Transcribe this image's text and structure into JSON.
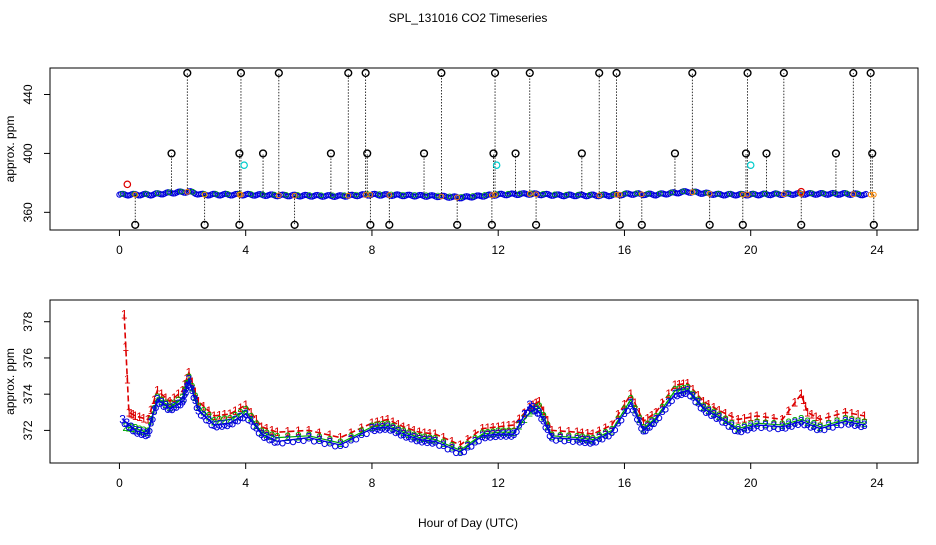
{
  "title": "SPL_131016  CO2 Timeseries",
  "xlabel": "Hour of Day (UTC)",
  "chart_data": [
    {
      "type": "scatter",
      "title": "",
      "ylabel": "approx. ppm",
      "xlim": [
        -2.2,
        25.3
      ],
      "ylim": [
        348,
        458
      ],
      "x_ticks": [
        "0",
        "4",
        "8",
        "12",
        "16",
        "20",
        "24"
      ],
      "y_ticks": [
        "360",
        "400",
        "440"
      ],
      "baseline": [
        [
          0,
          372
        ],
        [
          1,
          372
        ],
        [
          1.5,
          373
        ],
        [
          2.2,
          374
        ],
        [
          2.6,
          372
        ],
        [
          4,
          372
        ],
        [
          5,
          371.5
        ],
        [
          7,
          371
        ],
        [
          8,
          372
        ],
        [
          10,
          371
        ],
        [
          10.8,
          370
        ],
        [
          12,
          372
        ],
        [
          13,
          372.5
        ],
        [
          14,
          371.5
        ],
        [
          15.5,
          371.5
        ],
        [
          16.2,
          372.5
        ],
        [
          17,
          372
        ],
        [
          18,
          374
        ],
        [
          19,
          372
        ],
        [
          20,
          372
        ],
        [
          21.6,
          372.5
        ],
        [
          23,
          372.5
        ],
        [
          23.7,
          372
        ]
      ],
      "high_spikes": [
        2.15,
        3.85,
        5.05,
        7.25,
        7.8,
        10.2,
        11.9,
        13.0,
        15.2,
        15.75,
        18.15,
        19.9,
        21.05,
        23.25,
        23.8
      ],
      "mid_spikes": [
        1.65,
        3.8,
        4.55,
        6.7,
        7.85,
        9.65,
        11.85,
        12.55,
        14.65,
        17.6,
        19.85,
        20.5,
        22.7,
        23.85
      ],
      "low_spikes": [
        0.5,
        2.7,
        3.8,
        5.55,
        7.95,
        8.55,
        10.7,
        11.8,
        13.2,
        15.85,
        16.55,
        18.7,
        19.75,
        21.6,
        23.9
      ],
      "cyan_points": [
        [
          3.95,
          392
        ],
        [
          11.95,
          392
        ],
        [
          20.0,
          392
        ]
      ],
      "red_points": [
        [
          0.25,
          379
        ],
        [
          21.6,
          374
        ]
      ],
      "symbols": {
        "spike": "o",
        "cyan": "o",
        "red": "o"
      }
    },
    {
      "type": "line",
      "title": "",
      "ylabel": "approx. ppm",
      "xlim": [
        -2.2,
        25.3
      ],
      "ylim": [
        370.2,
        379.2
      ],
      "x_ticks": [
        "0",
        "4",
        "8",
        "12",
        "16",
        "20",
        "24"
      ],
      "y_ticks": [
        "372",
        "374",
        "376",
        "378"
      ],
      "series": [
        {
          "name": "1",
          "color": "#dd0000",
          "label": "1",
          "points": [
            [
              0.15,
              378.4
            ],
            [
              0.3,
              373.0
            ],
            [
              0.5,
              372.8
            ],
            [
              0.9,
              372.6
            ],
            [
              1.2,
              374.2
            ],
            [
              1.6,
              373.6
            ],
            [
              2.0,
              374.2
            ],
            [
              2.2,
              375.2
            ],
            [
              2.5,
              373.6
            ],
            [
              3.0,
              372.8
            ],
            [
              3.5,
              372.9
            ],
            [
              4.0,
              373.4
            ],
            [
              4.5,
              372.2
            ],
            [
              5.0,
              371.9
            ],
            [
              6.0,
              372.0
            ],
            [
              7.0,
              371.6
            ],
            [
              8.0,
              372.4
            ],
            [
              8.5,
              372.6
            ],
            [
              9.0,
              372.2
            ],
            [
              9.5,
              371.9
            ],
            [
              10.0,
              371.8
            ],
            [
              10.8,
              371.2
            ],
            [
              11.5,
              372.1
            ],
            [
              12.0,
              372.2
            ],
            [
              12.5,
              372.3
            ],
            [
              13.0,
              373.3
            ],
            [
              13.3,
              373.6
            ],
            [
              13.7,
              372.0
            ],
            [
              14.5,
              371.9
            ],
            [
              15.0,
              371.8
            ],
            [
              15.6,
              372.3
            ],
            [
              16.2,
              374.0
            ],
            [
              16.6,
              372.5
            ],
            [
              17.0,
              373.0
            ],
            [
              17.6,
              374.5
            ],
            [
              18.0,
              374.6
            ],
            [
              18.5,
              373.6
            ],
            [
              19.0,
              373.1
            ],
            [
              19.6,
              372.6
            ],
            [
              20.2,
              372.8
            ],
            [
              21.0,
              372.6
            ],
            [
              21.6,
              374.0
            ],
            [
              21.8,
              373.0
            ],
            [
              22.2,
              372.6
            ],
            [
              23.0,
              373.0
            ],
            [
              23.6,
              372.8
            ]
          ]
        },
        {
          "name": "2",
          "color": "#00aa00",
          "label": "2",
          "points": [
            [
              0.2,
              372.2
            ],
            [
              0.5,
              372.1
            ],
            [
              0.9,
              371.9
            ],
            [
              1.2,
              373.8
            ],
            [
              1.6,
              373.3
            ],
            [
              2.0,
              373.8
            ],
            [
              2.2,
              374.9
            ],
            [
              2.5,
              373.3
            ],
            [
              3.0,
              372.5
            ],
            [
              3.5,
              372.6
            ],
            [
              4.0,
              373.1
            ],
            [
              4.5,
              371.9
            ],
            [
              5.0,
              371.6
            ],
            [
              6.0,
              371.7
            ],
            [
              7.0,
              371.3
            ],
            [
              8.0,
              372.2
            ],
            [
              8.5,
              372.3
            ],
            [
              9.0,
              371.9
            ],
            [
              9.5,
              371.6
            ],
            [
              10.0,
              371.5
            ],
            [
              10.8,
              370.9
            ],
            [
              11.5,
              371.8
            ],
            [
              12.0,
              371.9
            ],
            [
              12.5,
              371.9
            ],
            [
              13.0,
              373.0
            ],
            [
              13.3,
              373.3
            ],
            [
              13.7,
              371.7
            ],
            [
              14.5,
              371.6
            ],
            [
              15.0,
              371.5
            ],
            [
              15.6,
              372.0
            ],
            [
              16.2,
              373.7
            ],
            [
              16.6,
              372.1
            ],
            [
              17.0,
              372.7
            ],
            [
              17.6,
              374.2
            ],
            [
              18.0,
              374.3
            ],
            [
              18.5,
              373.3
            ],
            [
              19.0,
              372.8
            ],
            [
              19.6,
              372.1
            ],
            [
              20.2,
              372.4
            ],
            [
              21.0,
              372.3
            ],
            [
              21.6,
              372.6
            ],
            [
              22.2,
              372.2
            ],
            [
              23.0,
              372.6
            ],
            [
              23.6,
              372.4
            ]
          ]
        },
        {
          "name": "3",
          "color": "#0000dd",
          "label": "3",
          "points": [
            [
              0.1,
              372.6
            ],
            [
              0.5,
              372.0
            ],
            [
              0.9,
              371.8
            ],
            [
              1.2,
              373.7
            ],
            [
              1.6,
              373.2
            ],
            [
              2.0,
              373.6
            ],
            [
              2.2,
              374.8
            ],
            [
              2.5,
              373.1
            ],
            [
              3.0,
              372.3
            ],
            [
              3.5,
              372.4
            ],
            [
              4.0,
              372.9
            ],
            [
              4.5,
              371.8
            ],
            [
              5.0,
              371.4
            ],
            [
              6.0,
              371.6
            ],
            [
              7.0,
              371.2
            ],
            [
              8.0,
              372.1
            ],
            [
              8.5,
              372.2
            ],
            [
              9.0,
              371.8
            ],
            [
              9.5,
              371.5
            ],
            [
              10.0,
              371.4
            ],
            [
              10.8,
              370.8
            ],
            [
              11.5,
              371.7
            ],
            [
              12.0,
              371.8
            ],
            [
              12.5,
              371.8
            ],
            [
              13.0,
              373.4
            ],
            [
              13.3,
              373.0
            ],
            [
              13.7,
              371.6
            ],
            [
              14.5,
              371.5
            ],
            [
              15.0,
              371.4
            ],
            [
              15.6,
              371.9
            ],
            [
              16.2,
              373.5
            ],
            [
              16.6,
              372.0
            ],
            [
              17.0,
              372.6
            ],
            [
              17.6,
              374.0
            ],
            [
              18.0,
              374.2
            ],
            [
              18.5,
              373.2
            ],
            [
              19.0,
              372.7
            ],
            [
              19.6,
              372.0
            ],
            [
              20.2,
              372.3
            ],
            [
              21.0,
              372.2
            ],
            [
              21.6,
              372.5
            ],
            [
              22.2,
              372.1
            ],
            [
              23.0,
              372.5
            ],
            [
              23.6,
              372.3
            ]
          ]
        }
      ],
      "point_labels": [
        "1",
        "2",
        "3",
        "o"
      ]
    }
  ]
}
